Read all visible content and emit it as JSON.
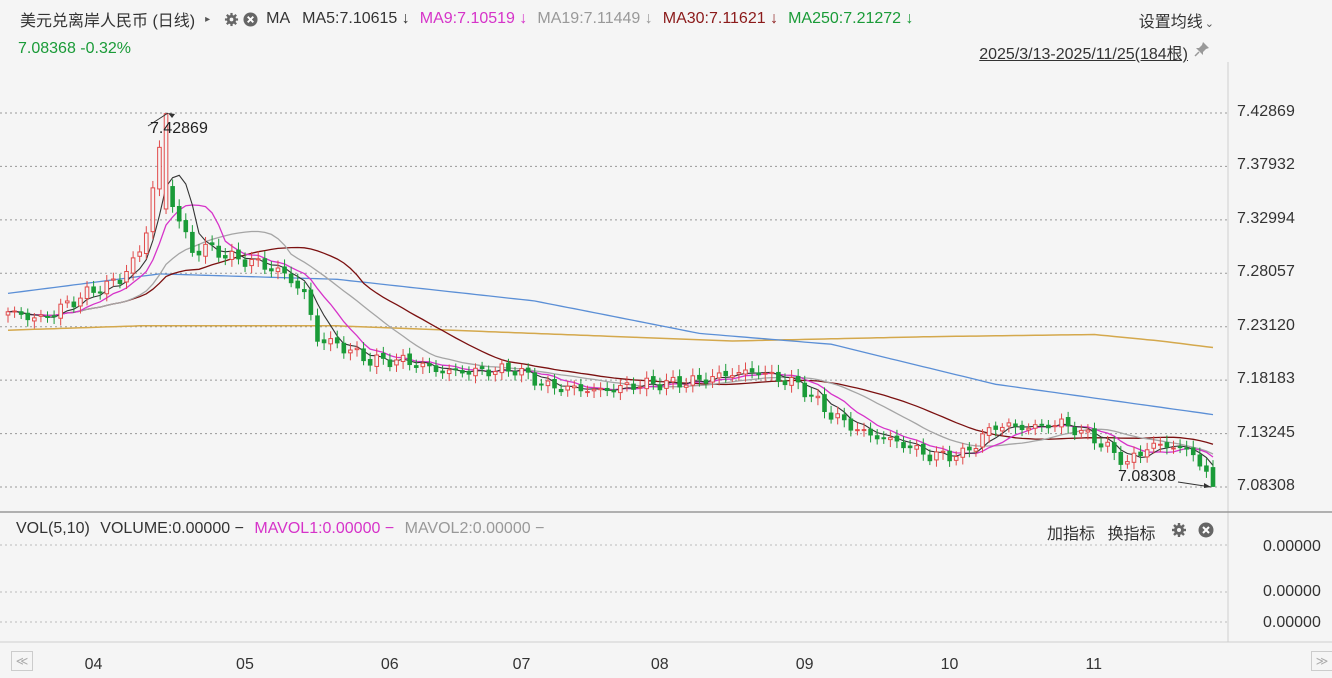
{
  "header": {
    "title": "美元兑离岸人民币 (日线)",
    "expand_arrow": "▸",
    "ma_label": "MA",
    "ma_items": [
      {
        "text": "MA5:7.10615 ↓",
        "color": "#333333"
      },
      {
        "text": "MA9:7.10519 ↓",
        "color": "#d633c9"
      },
      {
        "text": "MA19:7.11449 ↓",
        "color": "#999999"
      },
      {
        "text": "MA30:7.11621 ↓",
        "color": "#8b1a1a"
      },
      {
        "text": "MA250:7.21272 ↓",
        "color": "#1a9b38"
      }
    ],
    "settings_label": "设置均线",
    "settings_chevron": "⌄",
    "price_line": "7.08368  -0.32%",
    "date_range": "2025/3/13-2025/11/25(184根)"
  },
  "volume_panel": {
    "vol_label": "VOL(5,10)",
    "volume_label": "VOLUME:0.00000 −",
    "mavol1_label": "MAVOL1:0.00000 −",
    "mavol2_label": "MAVOL2:0.00000 −",
    "add_indicator": "加指标",
    "switch_indicator": "换指标",
    "axis_labels": [
      "0.00000",
      "0.00000",
      "0.00000"
    ]
  },
  "nav": {
    "left": "≪",
    "right": "≫"
  },
  "colors": {
    "up": "#e14a4a",
    "down": "#1a9b38",
    "ma5": "#333333",
    "ma9": "#d633c9",
    "ma19": "#a5a5a5",
    "ma30": "#7b1010",
    "ma60": "#5b8fd6",
    "ma250": "#d4a84c",
    "grid": "#999999",
    "background": "#f5f5f5"
  },
  "chart_data": {
    "type": "candlestick",
    "title": "美元兑离岸人民币 (日线)",
    "period": "2025/3/13-2025/11/25",
    "bars": 184,
    "y_ticks": [
      "7.42869",
      "7.37932",
      "7.32994",
      "7.28057",
      "7.23120",
      "7.18183",
      "7.13245",
      "7.08308"
    ],
    "ylim": [
      7.08308,
      7.42869
    ],
    "x_ticks": [
      "04",
      "05",
      "06",
      "07",
      "08",
      "09",
      "10",
      "11"
    ],
    "annotations": {
      "high": "7.42869",
      "low": "7.08308"
    },
    "last_close": 7.08368,
    "change_pct": -0.32,
    "close_anchors": [
      [
        0,
        7.245
      ],
      [
        5,
        7.238
      ],
      [
        12,
        7.262
      ],
      [
        17,
        7.275
      ],
      [
        20,
        7.3
      ],
      [
        21,
        7.32
      ],
      [
        22,
        7.36
      ],
      [
        23,
        7.395
      ],
      [
        24,
        7.36
      ],
      [
        26,
        7.33
      ],
      [
        28,
        7.3
      ],
      [
        30,
        7.305
      ],
      [
        34,
        7.295
      ],
      [
        38,
        7.29
      ],
      [
        42,
        7.28
      ],
      [
        45,
        7.262
      ],
      [
        47,
        7.22
      ],
      [
        50,
        7.215
      ],
      [
        55,
        7.2
      ],
      [
        60,
        7.2
      ],
      [
        66,
        7.19
      ],
      [
        72,
        7.19
      ],
      [
        77,
        7.192
      ],
      [
        82,
        7.176
      ],
      [
        90,
        7.172
      ],
      [
        96,
        7.178
      ],
      [
        103,
        7.18
      ],
      [
        105,
        7.182
      ],
      [
        110,
        7.188
      ],
      [
        114,
        7.19
      ],
      [
        116,
        7.185
      ],
      [
        120,
        7.178
      ],
      [
        125,
        7.15
      ],
      [
        130,
        7.133
      ],
      [
        135,
        7.125
      ],
      [
        140,
        7.112
      ],
      [
        145,
        7.113
      ],
      [
        150,
        7.14
      ],
      [
        155,
        7.138
      ],
      [
        160,
        7.142
      ],
      [
        165,
        7.128
      ],
      [
        170,
        7.105
      ],
      [
        173,
        7.12
      ],
      [
        176,
        7.122
      ],
      [
        180,
        7.115
      ],
      [
        183,
        7.084
      ]
    ],
    "series": [
      {
        "name": "MA5",
        "value": 7.10615
      },
      {
        "name": "MA9",
        "value": 7.10519
      },
      {
        "name": "MA19",
        "value": 7.11449
      },
      {
        "name": "MA30",
        "value": 7.11621
      },
      {
        "name": "MA250",
        "value": 7.21272
      }
    ],
    "ma60_anchors": [
      [
        0,
        7.262
      ],
      [
        23,
        7.28
      ],
      [
        50,
        7.275
      ],
      [
        80,
        7.255
      ],
      [
        105,
        7.225
      ],
      [
        125,
        7.215
      ],
      [
        150,
        7.178
      ],
      [
        183,
        7.15
      ]
    ],
    "ma250_anchors": [
      [
        0,
        7.228
      ],
      [
        20,
        7.232
      ],
      [
        50,
        7.232
      ],
      [
        80,
        7.225
      ],
      [
        110,
        7.218
      ],
      [
        140,
        7.222
      ],
      [
        165,
        7.224
      ],
      [
        175,
        7.218
      ],
      [
        183,
        7.212
      ]
    ]
  }
}
